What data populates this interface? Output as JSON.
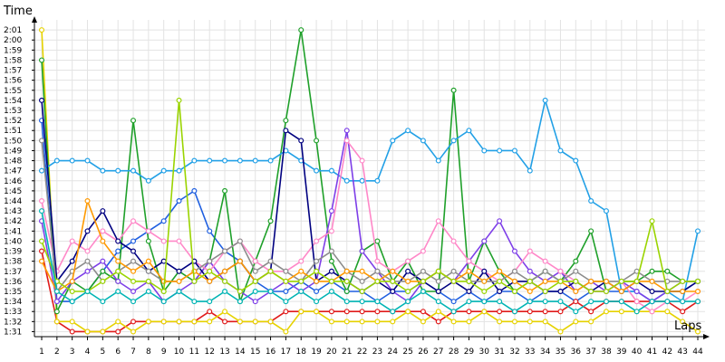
{
  "chart_data": {
    "type": "line",
    "title": "",
    "xlabel": "Laps",
    "ylabel": "Time",
    "grid": true,
    "legend": "none",
    "x": [
      1,
      2,
      3,
      4,
      5,
      6,
      7,
      8,
      9,
      10,
      11,
      12,
      13,
      14,
      15,
      16,
      17,
      18,
      19,
      20,
      21,
      22,
      23,
      24,
      25,
      26,
      27,
      28,
      29,
      30,
      31,
      32,
      33,
      34,
      35,
      36,
      37,
      38,
      39,
      40,
      41,
      42,
      43,
      44
    ],
    "xlim": [
      1,
      44
    ],
    "ylim": [
      90.5,
      122
    ],
    "yticks": [
      91,
      92,
      93,
      94,
      95,
      96,
      97,
      98,
      99,
      100,
      101,
      102,
      103,
      104,
      105,
      106,
      107,
      108,
      109,
      110,
      111,
      112,
      113,
      114,
      115,
      116,
      117,
      118,
      119,
      120,
      121
    ],
    "ytick_labels": [
      "1:31",
      "1:32",
      "1:33",
      "1:34",
      "1:35",
      "1:36",
      "1:37",
      "1:38",
      "1:39",
      "1:40",
      "1:41",
      "1:42",
      "1:43",
      "1:44",
      "1:45",
      "1:46",
      "1:47",
      "1:48",
      "1:49",
      "1:50",
      "1:51",
      "1:52",
      "1:53",
      "1:54",
      "1:55",
      "1:56",
      "1:57",
      "1:58",
      "1:59",
      "2:00",
      "2:01"
    ],
    "series": [
      {
        "color": "#1f5fe0",
        "values": [
          112,
          94,
          94,
          95,
          97,
          99,
          100,
          101,
          102,
          104,
          105,
          101,
          99,
          98,
          96,
          95,
          95,
          96,
          95,
          96,
          95,
          95,
          94,
          95,
          95,
          96,
          95,
          94,
          95,
          94,
          95,
          95,
          94,
          95,
          95,
          94,
          95,
          95,
          95,
          95,
          94,
          95,
          95,
          96
        ]
      },
      {
        "color": "#e01b1b",
        "values": [
          99,
          92,
          91,
          91,
          91,
          91,
          92,
          92,
          92,
          92,
          92,
          93,
          92,
          92,
          92,
          92,
          93,
          93,
          93,
          93,
          93,
          93,
          93,
          93,
          93,
          93,
          92,
          93,
          93,
          93,
          93,
          93,
          93,
          93,
          93,
          94,
          93,
          94,
          94,
          94,
          94,
          94,
          93,
          94
        ]
      },
      {
        "color": "#e6d200",
        "values": [
          121,
          92,
          92,
          91,
          91,
          92,
          91,
          92,
          92,
          92,
          92,
          92,
          93,
          92,
          92,
          92,
          91,
          93,
          93,
          92,
          92,
          92,
          92,
          92,
          93,
          92,
          93,
          92,
          92,
          93,
          92,
          92,
          92,
          92,
          91,
          92,
          92,
          93,
          93,
          93,
          93,
          93,
          92,
          91
        ]
      },
      {
        "color": "#1fa02a",
        "values": [
          118,
          93,
          96,
          95,
          97,
          96,
          112,
          100,
          95,
          97,
          96,
          98,
          105,
          94,
          98,
          102,
          112,
          121,
          110,
          98,
          95,
          99,
          100,
          96,
          98,
          95,
          95,
          115,
          96,
          100,
          97,
          95,
          96,
          97,
          96,
          98,
          101,
          95,
          96,
          96,
          97,
          97,
          96,
          96
        ]
      },
      {
        "color": "#22a0e6",
        "values": [
          107,
          108,
          108,
          108,
          107,
          107,
          107,
          106,
          107,
          107,
          108,
          108,
          108,
          108,
          108,
          108,
          109,
          108,
          107,
          107,
          106,
          106,
          106,
          110,
          111,
          110,
          108,
          110,
          111,
          109,
          109,
          109,
          107,
          114,
          109,
          108,
          104,
          103,
          95,
          95,
          94,
          95,
          94,
          101
        ]
      },
      {
        "color": "#7e3fe8",
        "values": [
          102,
          94,
          96,
          97,
          98,
          96,
          95,
          96,
          94,
          95,
          96,
          98,
          96,
          95,
          94,
          95,
          96,
          95,
          96,
          103,
          111,
          99,
          97,
          95,
          94,
          96,
          97,
          96,
          98,
          100,
          102,
          99,
          97,
          96,
          97,
          95,
          96,
          95,
          96,
          95,
          94,
          95,
          96,
          96
        ]
      },
      {
        "color": "#ff88c8",
        "values": [
          104,
          97,
          100,
          99,
          101,
          100,
          102,
          101,
          100,
          100,
          98,
          97,
          99,
          100,
          98,
          97,
          97,
          98,
          100,
          101,
          110,
          108,
          98,
          97,
          98,
          99,
          102,
          100,
          98,
          97,
          96,
          97,
          99,
          98,
          97,
          96,
          95,
          95,
          96,
          94,
          93,
          94,
          94,
          95
        ]
      },
      {
        "color": "#000080",
        "values": [
          114,
          96,
          98,
          101,
          103,
          100,
          99,
          97,
          98,
          97,
          98,
          96,
          97,
          98,
          96,
          97,
          111,
          110,
          96,
          97,
          96,
          95,
          96,
          95,
          97,
          96,
          95,
          96,
          95,
          97,
          95,
          96,
          96,
          95,
          95,
          96,
          95,
          96,
          95,
          96,
          95,
          95,
          95,
          96
        ]
      },
      {
        "color": "#8c8c8c",
        "values": [
          110,
          95,
          97,
          98,
          96,
          97,
          98,
          97,
          96,
          96,
          97,
          98,
          99,
          100,
          97,
          98,
          97,
          96,
          98,
          99,
          97,
          96,
          97,
          96,
          96,
          97,
          96,
          97,
          96,
          96,
          96,
          97,
          96,
          97,
          96,
          97,
          96,
          96,
          96,
          97,
          96,
          96,
          96,
          96
        ]
      },
      {
        "color": "#ff9900",
        "values": [
          98,
          95,
          96,
          104,
          100,
          98,
          97,
          98,
          96,
          96,
          97,
          96,
          97,
          98,
          96,
          97,
          96,
          97,
          96,
          96,
          97,
          97,
          96,
          97,
          96,
          96,
          97,
          96,
          97,
          96,
          97,
          96,
          95,
          96,
          96,
          95,
          96,
          96,
          95,
          96,
          96,
          95,
          95,
          95
        ]
      },
      {
        "color": "#9ad400",
        "values": [
          100,
          96,
          95,
          95,
          96,
          97,
          96,
          96,
          95,
          114,
          96,
          97,
          96,
          95,
          96,
          97,
          96,
          96,
          97,
          96,
          96,
          95,
          96,
          96,
          95,
          96,
          97,
          96,
          96,
          95,
          96,
          95,
          96,
          95,
          96,
          96,
          95,
          95,
          96,
          96,
          102,
          95,
          96,
          96
        ]
      },
      {
        "color": "#00b4b4",
        "values": [
          103,
          95,
          94,
          95,
          94,
          95,
          94,
          95,
          94,
          95,
          94,
          94,
          95,
          94,
          95,
          95,
          94,
          95,
          94,
          95,
          94,
          94,
          94,
          93,
          94,
          95,
          94,
          93,
          94,
          94,
          94,
          93,
          94,
          94,
          94,
          93,
          94,
          94,
          94,
          93,
          94,
          94,
          94,
          94
        ]
      }
    ]
  }
}
